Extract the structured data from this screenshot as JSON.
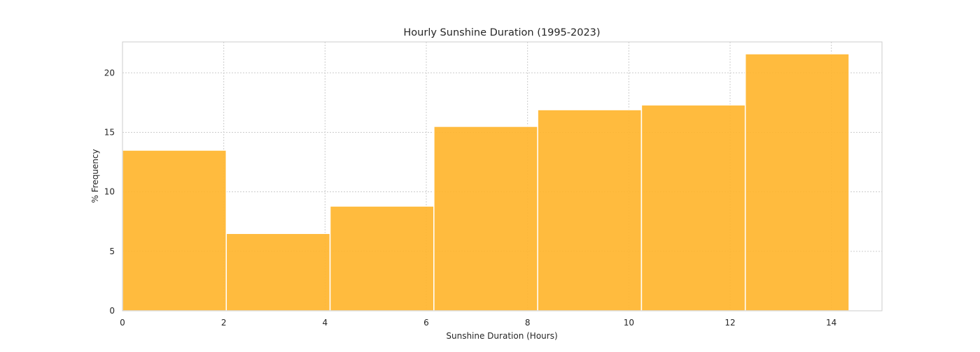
{
  "chart_data": {
    "type": "bar",
    "title": "Hourly Sunshine Duration (1995-2023)",
    "xlabel": "Sunshine Duration (Hours)",
    "ylabel": "% Frequency",
    "xlim": [
      0,
      15
    ],
    "ylim": [
      0,
      22.6
    ],
    "x_ticks": [
      0,
      2,
      4,
      6,
      8,
      10,
      12,
      14
    ],
    "y_ticks": [
      0,
      5,
      10,
      15,
      20
    ],
    "grid": true,
    "legend": "none",
    "bar_color": "#FFB52E",
    "bins": [
      {
        "start": 0.0,
        "end": 2.05,
        "value": 13.5
      },
      {
        "start": 2.05,
        "end": 4.1,
        "value": 6.5
      },
      {
        "start": 4.1,
        "end": 6.15,
        "value": 8.8
      },
      {
        "start": 6.15,
        "end": 8.2,
        "value": 15.5
      },
      {
        "start": 8.2,
        "end": 10.25,
        "value": 16.9
      },
      {
        "start": 10.25,
        "end": 12.3,
        "value": 17.3
      },
      {
        "start": 12.3,
        "end": 14.35,
        "value": 21.6
      }
    ]
  }
}
